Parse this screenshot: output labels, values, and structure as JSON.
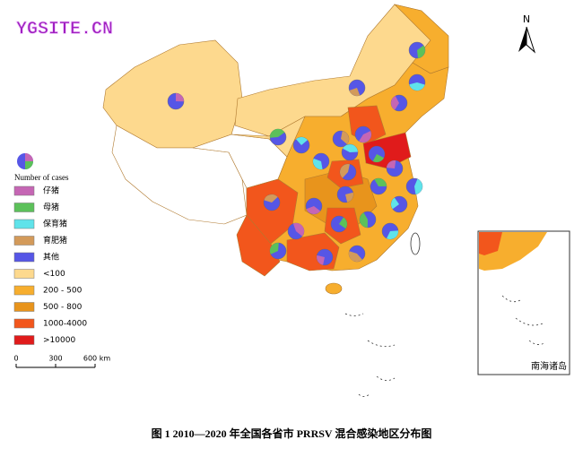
{
  "watermark": "YGSITE.CN",
  "north_label": "N",
  "legend": {
    "title": "Number of cases",
    "items": [
      {
        "label": "仔猪",
        "color": "#c566b4"
      },
      {
        "label": "母猪",
        "color": "#5cc15a"
      },
      {
        "label": "保育猪",
        "color": "#5fe3ea"
      },
      {
        "label": "育肥猪",
        "color": "#d39a5a"
      },
      {
        "label": "其他",
        "color": "#5656e6"
      },
      {
        "label": "<100",
        "color": "#fdd98e"
      },
      {
        "label": "200 - 500",
        "color": "#f7ae2e"
      },
      {
        "label": "500 - 800",
        "color": "#e8941c"
      },
      {
        "label": "1000-4000",
        "color": "#f2561c"
      },
      {
        "label": ">10000",
        "color": "#e01b1b"
      }
    ]
  },
  "scale_bar": {
    "labels": [
      "0",
      "300",
      "600 km"
    ]
  },
  "inset": {
    "label": "南海诸岛"
  },
  "caption": "图 1 2010—2020 年全国各省市 PRRSV 混合感染地区分布图"
}
